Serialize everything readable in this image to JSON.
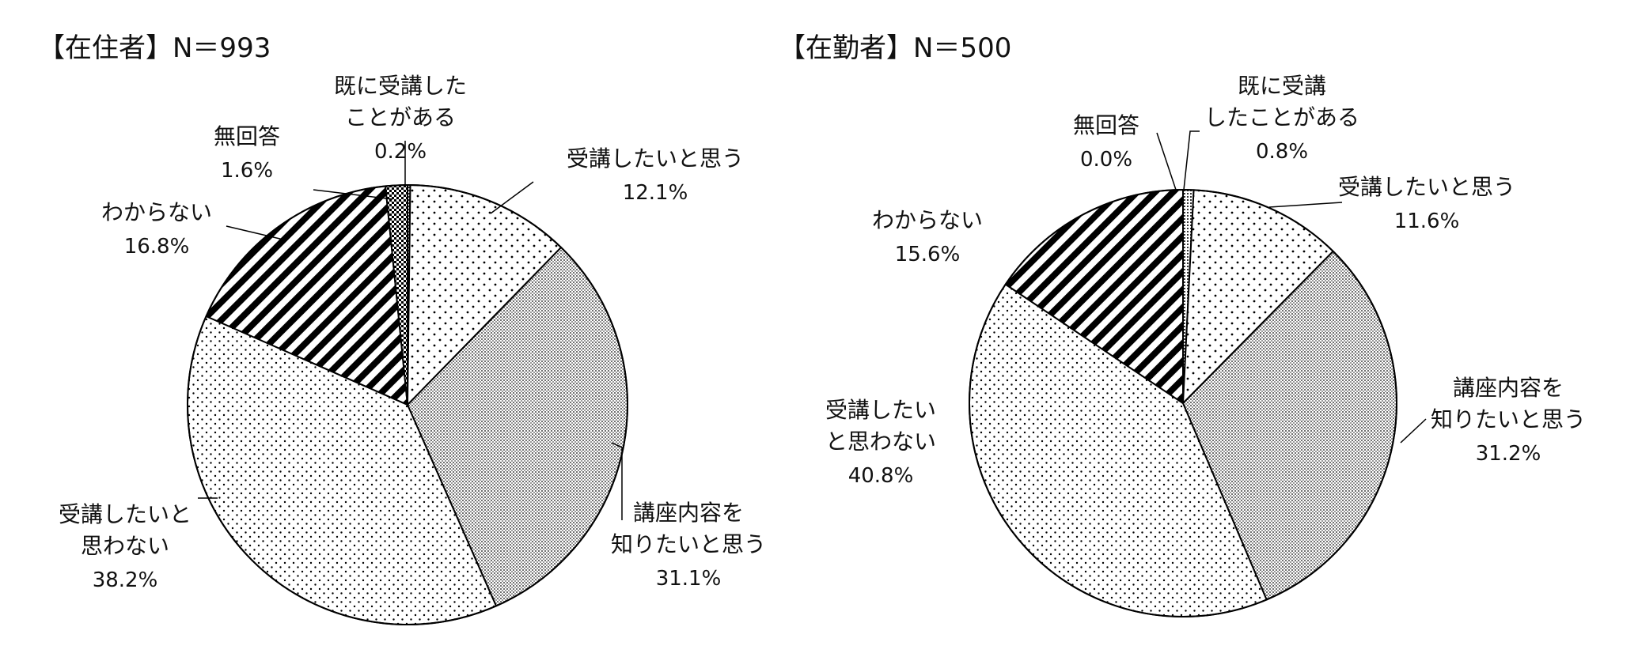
{
  "chart_data": [
    {
      "type": "pie",
      "title": "【在住者】N＝993",
      "slices": [
        {
          "label": [
            "既に受講した",
            "ことがある"
          ],
          "value": 0.2,
          "value_label": "0.2%",
          "pattern": "dots-dense"
        },
        {
          "label": [
            "受講したいと思う"
          ],
          "value": 12.1,
          "value_label": "12.1%",
          "pattern": "dots-sparse"
        },
        {
          "label": [
            "講座内容を",
            "知りたいと思う"
          ],
          "value": 31.1,
          "value_label": "31.1%",
          "pattern": "grid"
        },
        {
          "label": [
            "受講したいと",
            "思わない"
          ],
          "value": 38.2,
          "value_label": "38.2%",
          "pattern": "dots-fine"
        },
        {
          "label": [
            "わからない"
          ],
          "value": 16.8,
          "value_label": "16.8%",
          "pattern": "stripes"
        },
        {
          "label": [
            "無回答"
          ],
          "value": 1.6,
          "value_label": "1.6%",
          "pattern": "checker"
        }
      ]
    },
    {
      "type": "pie",
      "title": "【在勤者】N＝500",
      "slices": [
        {
          "label": [
            "既に受講",
            "したことがある"
          ],
          "value": 0.8,
          "value_label": "0.8%",
          "pattern": "dots-dense"
        },
        {
          "label": [
            "受講したいと思う"
          ],
          "value": 11.6,
          "value_label": "11.6%",
          "pattern": "dots-sparse"
        },
        {
          "label": [
            "講座内容を",
            "知りたいと思う"
          ],
          "value": 31.2,
          "value_label": "31.2%",
          "pattern": "grid"
        },
        {
          "label": [
            "受講したい",
            "と思わない"
          ],
          "value": 40.8,
          "value_label": "40.8%",
          "pattern": "dots-fine"
        },
        {
          "label": [
            "わからない"
          ],
          "value": 15.6,
          "value_label": "15.6%",
          "pattern": "stripes"
        },
        {
          "label": [
            "無回答"
          ],
          "value": 0.0,
          "value_label": "0.0%",
          "pattern": "checker"
        }
      ]
    }
  ]
}
